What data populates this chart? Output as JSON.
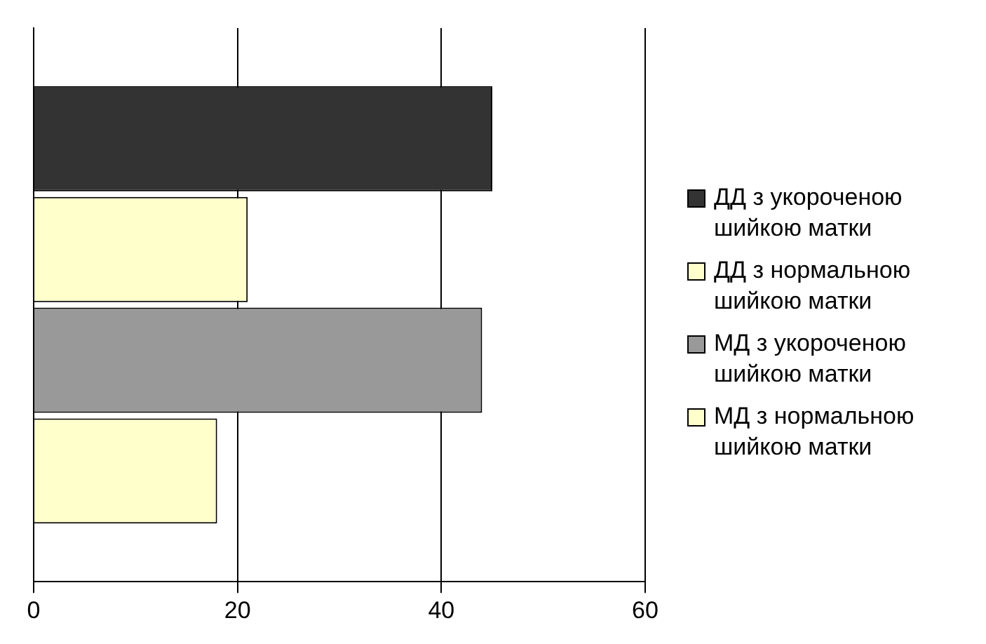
{
  "chart_data": {
    "type": "bar",
    "orientation": "horizontal",
    "categories": [
      null
    ],
    "series": [
      {
        "name": "ДД з укороченою шийкою матки",
        "color": "#333333",
        "values": [
          45
        ]
      },
      {
        "name": "ДД з нормальною шийкою матки",
        "color": "#ffffcc",
        "values": [
          21
        ]
      },
      {
        "name": "МД з укороченою шийкою матки",
        "color": "#999999",
        "values": [
          44
        ]
      },
      {
        "name": "МД з нормальною шийкою матки",
        "color": "#ffffcc",
        "values": [
          18
        ]
      }
    ],
    "xlim": [
      0,
      60
    ],
    "xticks": [
      0,
      20,
      40,
      60
    ],
    "grid": "x",
    "legend": "right"
  }
}
